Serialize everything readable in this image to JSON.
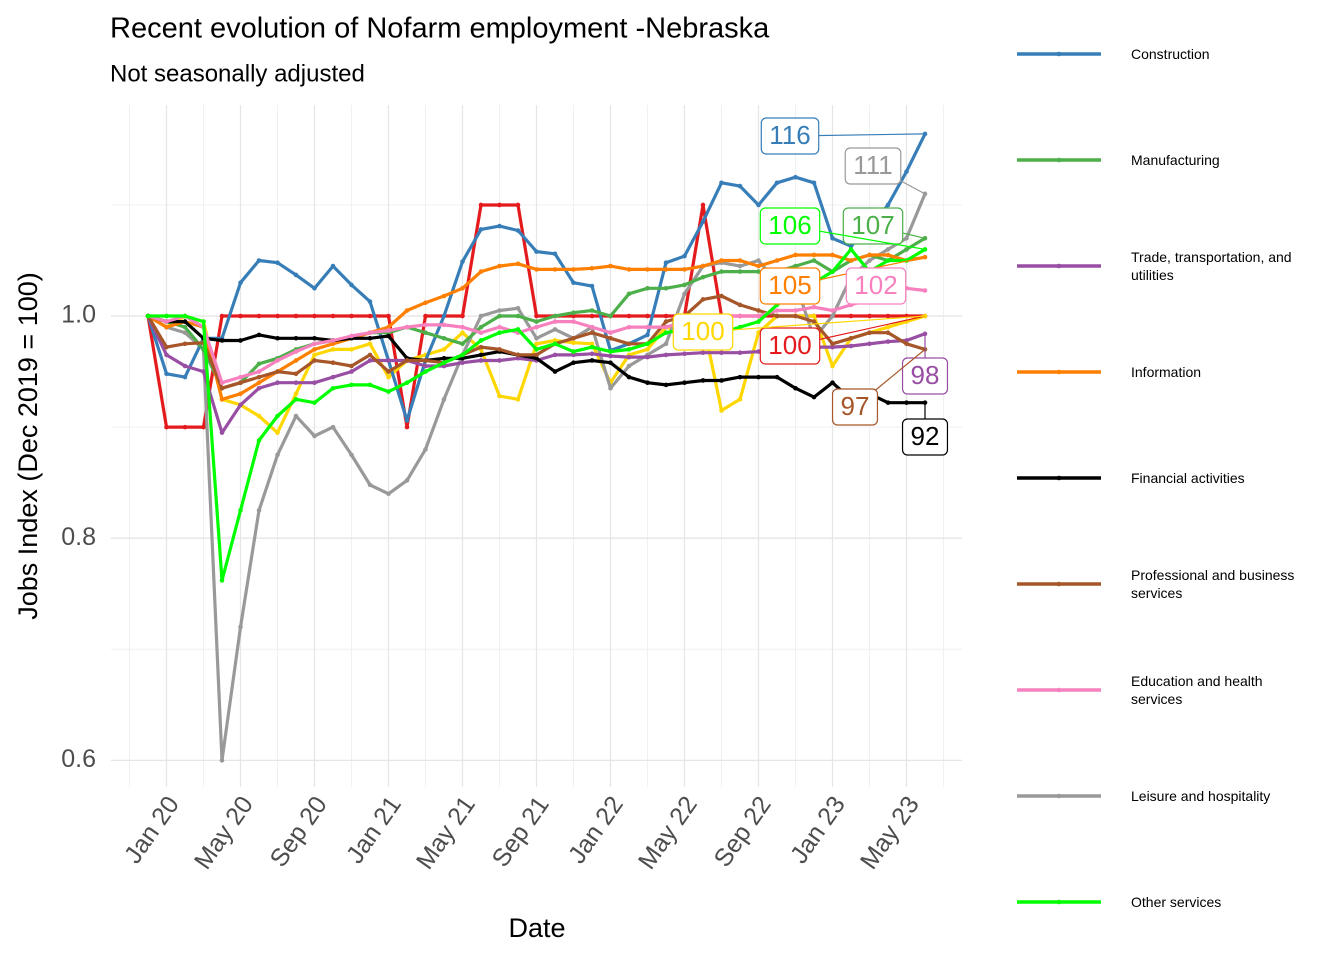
{
  "chart_data": {
    "type": "line",
    "title": "Recent evolution of Nofarm employment -Nebraska",
    "subtitle": "Not seasonally adjusted",
    "x_label": "Date",
    "y_label": "Jobs Index (Dec 2019 = 100)",
    "x": [
      "2019-12",
      "2020-01",
      "2020-02",
      "2020-03",
      "2020-04",
      "2020-05",
      "2020-06",
      "2020-07",
      "2020-08",
      "2020-09",
      "2020-10",
      "2020-11",
      "2020-12",
      "2021-01",
      "2021-02",
      "2021-03",
      "2021-04",
      "2021-05",
      "2021-06",
      "2021-07",
      "2021-08",
      "2021-09",
      "2021-10",
      "2021-11",
      "2021-12",
      "2022-01",
      "2022-02",
      "2022-03",
      "2022-04",
      "2022-05",
      "2022-06",
      "2022-07",
      "2022-08",
      "2022-09",
      "2022-10",
      "2022-11",
      "2022-12",
      "2023-01",
      "2023-02",
      "2023-03",
      "2023-04",
      "2023-05",
      "2023-06"
    ],
    "xlim": [
      "2019-10",
      "2023-08"
    ],
    "xticks": [
      {
        "value": "2020-01",
        "label": "Jan 20"
      },
      {
        "value": "2020-05",
        "label": "May 20"
      },
      {
        "value": "2020-09",
        "label": "Sep 20"
      },
      {
        "value": "2021-01",
        "label": "Jan 21"
      },
      {
        "value": "2021-05",
        "label": "May 21"
      },
      {
        "value": "2021-09",
        "label": "Sep 21"
      },
      {
        "value": "2022-01",
        "label": "Jan 22"
      },
      {
        "value": "2022-05",
        "label": "May 22"
      },
      {
        "value": "2022-09",
        "label": "Sep 22"
      },
      {
        "value": "2023-01",
        "label": "Jan 23"
      },
      {
        "value": "2023-05",
        "label": "May 23"
      }
    ],
    "ylim": [
      0.576,
      1.19
    ],
    "yticks": [
      0.6,
      0.8,
      {
        "value": 1,
        "label": "1.0"
      }
    ],
    "y_minor_ticks": [
      0.7,
      0.9,
      1.1
    ],
    "grid": true,
    "legend": "right",
    "series": [
      {
        "name": "Construction",
        "color": "#377eb8",
        "label": "116",
        "values": [
          1.0,
          0.948,
          0.945,
          0.98,
          0.98,
          1.03,
          1.05,
          1.048,
          1.037,
          1.025,
          1.045,
          1.028,
          1.013,
          0.96,
          0.906,
          0.96,
          1.0,
          1.049,
          1.078,
          1.081,
          1.077,
          1.058,
          1.056,
          1.03,
          1.027,
          0.969,
          0.975,
          0.983,
          1.048,
          1.054,
          1.085,
          1.12,
          1.117,
          1.1,
          1.12,
          1.125,
          1.12,
          1.07,
          1.063,
          1.08,
          1.1,
          1.13,
          1.164
        ]
      },
      {
        "name": "Manufacturing",
        "color": "#4daf4a",
        "label": "107",
        "values": [
          1.0,
          0.995,
          0.99,
          0.97,
          0.935,
          0.94,
          0.957,
          0.962,
          0.97,
          0.975,
          0.978,
          0.98,
          0.985,
          0.985,
          0.99,
          0.985,
          0.98,
          0.975,
          0.99,
          1.0,
          1.0,
          0.995,
          1.0,
          1.003,
          1.005,
          1.0,
          1.02,
          1.025,
          1.025,
          1.028,
          1.035,
          1.04,
          1.04,
          1.04,
          1.04,
          1.045,
          1.05,
          1.04,
          1.05,
          1.055,
          1.05,
          1.06,
          1.07
        ]
      },
      {
        "name": "Trade, transportation, and utilities",
        "color": "#984ea3",
        "label": "98",
        "values": [
          1.0,
          0.965,
          0.955,
          0.95,
          0.895,
          0.92,
          0.935,
          0.94,
          0.94,
          0.94,
          0.945,
          0.95,
          0.96,
          0.96,
          0.96,
          0.955,
          0.955,
          0.958,
          0.96,
          0.96,
          0.962,
          0.96,
          0.965,
          0.965,
          0.966,
          0.964,
          0.963,
          0.963,
          0.965,
          0.966,
          0.967,
          0.967,
          0.967,
          0.968,
          0.968,
          0.97,
          0.972,
          0.972,
          0.973,
          0.975,
          0.977,
          0.978,
          0.984
        ]
      },
      {
        "name": "Information",
        "color": "#ff7f00",
        "label": "105",
        "values": [
          1.0,
          0.99,
          0.995,
          0.99,
          0.925,
          0.93,
          0.94,
          0.95,
          0.96,
          0.97,
          0.975,
          0.98,
          0.985,
          0.99,
          1.005,
          1.012,
          1.018,
          1.025,
          1.04,
          1.045,
          1.047,
          1.042,
          1.042,
          1.042,
          1.043,
          1.045,
          1.042,
          1.042,
          1.042,
          1.042,
          1.045,
          1.05,
          1.05,
          1.045,
          1.05,
          1.055,
          1.055,
          1.055,
          1.05,
          1.055,
          1.055,
          1.05,
          1.053
        ]
      },
      {
        "name": "Financial activities",
        "color": "#000000",
        "label": "92",
        "values": [
          1.0,
          0.995,
          0.995,
          0.98,
          0.978,
          0.978,
          0.983,
          0.98,
          0.98,
          0.98,
          0.978,
          0.98,
          0.98,
          0.982,
          0.962,
          0.96,
          0.962,
          0.962,
          0.965,
          0.968,
          0.965,
          0.962,
          0.95,
          0.958,
          0.96,
          0.958,
          0.945,
          0.94,
          0.938,
          0.94,
          0.942,
          0.942,
          0.945,
          0.945,
          0.945,
          0.935,
          0.927,
          0.94,
          0.925,
          0.93,
          0.922,
          0.922,
          0.922
        ]
      },
      {
        "name": "Professional and business services",
        "color": "#a65628",
        "label": "97",
        "values": [
          1.0,
          0.972,
          0.975,
          0.976,
          0.935,
          0.94,
          0.945,
          0.95,
          0.948,
          0.96,
          0.958,
          0.955,
          0.965,
          0.95,
          0.96,
          0.96,
          0.958,
          0.965,
          0.972,
          0.97,
          0.965,
          0.965,
          0.975,
          0.98,
          0.985,
          0.98,
          0.975,
          0.975,
          0.995,
          1.0,
          1.015,
          1.018,
          1.01,
          1.005,
          1.0,
          1.0,
          0.995,
          0.975,
          0.98,
          0.985,
          0.985,
          0.975,
          0.97
        ]
      },
      {
        "name": "Education and health services",
        "color": "#f781bf",
        "label": "102",
        "values": [
          1.0,
          0.995,
          1.0,
          0.99,
          0.94,
          0.945,
          0.95,
          0.96,
          0.968,
          0.975,
          0.978,
          0.982,
          0.985,
          0.987,
          0.99,
          0.992,
          0.992,
          0.99,
          0.985,
          0.99,
          0.985,
          0.99,
          0.995,
          0.995,
          0.99,
          0.985,
          0.99,
          0.99,
          0.99,
          0.995,
          1.0,
          1.0,
          1.0,
          1.0,
          1.005,
          1.005,
          1.008,
          1.005,
          1.01,
          1.015,
          1.02,
          1.025,
          1.023
        ]
      },
      {
        "name": "Leisure and hospitality",
        "color": "#999999",
        "label": "111",
        "values": [
          1.0,
          0.99,
          0.985,
          0.97,
          0.6,
          0.72,
          0.825,
          0.875,
          0.91,
          0.892,
          0.9,
          0.875,
          0.848,
          0.84,
          0.852,
          0.88,
          0.925,
          0.965,
          1.0,
          1.005,
          1.007,
          0.98,
          0.988,
          0.98,
          0.99,
          0.935,
          0.955,
          0.965,
          0.975,
          1.02,
          1.045,
          1.048,
          1.045,
          1.05,
          1.03,
          1.03,
          0.98,
          1.0,
          1.035,
          1.05,
          1.06,
          1.07,
          1.11
        ]
      },
      {
        "name": "Other services",
        "color": "#00ff00",
        "label": "106",
        "values": [
          1.0,
          1.0,
          1.0,
          0.995,
          0.762,
          0.825,
          0.888,
          0.91,
          0.925,
          0.922,
          0.935,
          0.938,
          0.938,
          0.932,
          0.94,
          0.95,
          0.958,
          0.965,
          0.978,
          0.985,
          0.988,
          0.97,
          0.975,
          0.968,
          0.972,
          0.968,
          0.97,
          0.975,
          0.985,
          0.988,
          0.99,
          0.985,
          0.99,
          0.995,
          1.01,
          1.025,
          1.03,
          1.04,
          1.06,
          1.04,
          1.05,
          1.05,
          1.06
        ]
      },
      {
        "color": "#e41a1c",
        "label": "100",
        "values": [
          1.0,
          0.9,
          0.9,
          0.9,
          1.0,
          1.0,
          1.0,
          1.0,
          1.0,
          1.0,
          1.0,
          1.0,
          1.0,
          1.0,
          0.9,
          1.0,
          1.0,
          1.0,
          1.1,
          1.1,
          1.1,
          1.0,
          1.0,
          1.0,
          1.0,
          1.0,
          1.0,
          1.0,
          1.0,
          1.0,
          1.1,
          1.0,
          1.0,
          1.0,
          1.0,
          1.0,
          1.0,
          1.0,
          1.0,
          1.0,
          1.0,
          1.0,
          1.0
        ]
      },
      {
        "color": "#ffd700",
        "label": "100",
        "values": [
          1.0,
          0.99,
          1.0,
          0.995,
          0.925,
          0.92,
          0.91,
          0.895,
          0.93,
          0.965,
          0.97,
          0.97,
          0.975,
          0.945,
          0.96,
          0.965,
          0.97,
          0.985,
          0.97,
          0.928,
          0.925,
          0.975,
          0.978,
          0.976,
          0.975,
          0.94,
          0.965,
          0.97,
          0.99,
          0.985,
          0.995,
          0.915,
          0.925,
          0.985,
          1.0,
          1.0,
          1.0,
          0.955,
          0.98,
          0.985,
          0.99,
          0.995,
          1.0
        ]
      }
    ]
  }
}
